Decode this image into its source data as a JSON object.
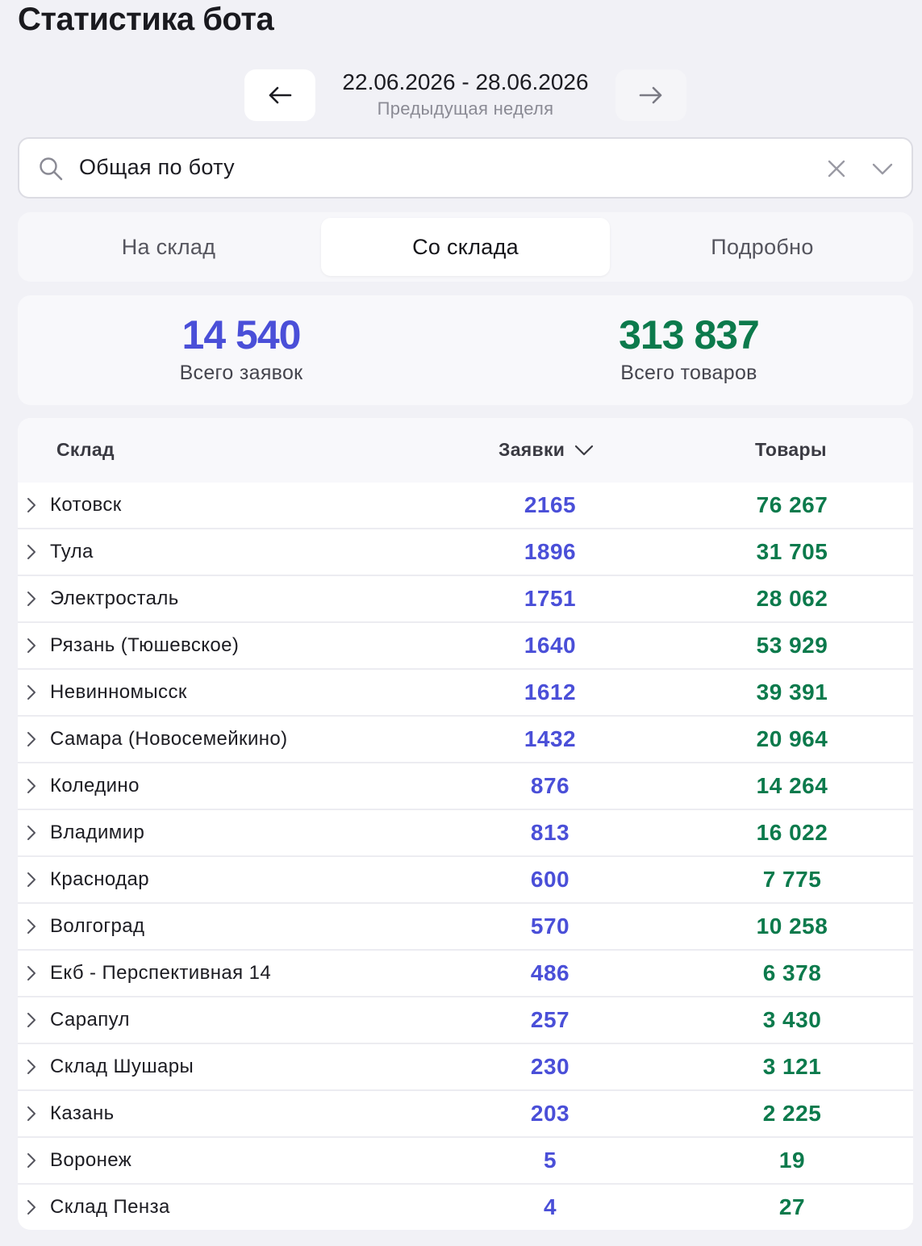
{
  "page": {
    "title": "Статистика бота"
  },
  "week_nav": {
    "range": "22.06.2026 - 28.06.2026",
    "label": "Предыдущая неделя",
    "prev_icon": "arrow-left-icon",
    "next_icon": "arrow-right-icon"
  },
  "bot_select": {
    "value": "Общая по боту",
    "search_icon": "search-icon",
    "clear_icon": "close-icon",
    "chevron_icon": "chevron-down-icon"
  },
  "tabs": [
    {
      "label": "На склад",
      "active": false
    },
    {
      "label": "Со склада",
      "active": true
    },
    {
      "label": "Подробно",
      "active": false
    }
  ],
  "summary": {
    "requests": {
      "value": "14 540",
      "label": "Всего заявок"
    },
    "goods": {
      "value": "313 837",
      "label": "Всего товаров"
    }
  },
  "colors": {
    "requests": "#4a4fd8",
    "goods": "#0c7a4c"
  },
  "table": {
    "headers": {
      "warehouse": "Склад",
      "requests": "Заявки",
      "goods": "Товары"
    },
    "rows": [
      {
        "name": "Котовск",
        "requests": "2165",
        "goods": "76 267"
      },
      {
        "name": "Тула",
        "requests": "1896",
        "goods": "31 705"
      },
      {
        "name": "Электросталь",
        "requests": "1751",
        "goods": "28 062"
      },
      {
        "name": "Рязань (Тюшевское)",
        "requests": "1640",
        "goods": "53 929"
      },
      {
        "name": "Невинномысск",
        "requests": "1612",
        "goods": "39 391"
      },
      {
        "name": "Самара (Новосемейкино)",
        "requests": "1432",
        "goods": "20 964"
      },
      {
        "name": "Коледино",
        "requests": "876",
        "goods": "14 264"
      },
      {
        "name": "Владимир",
        "requests": "813",
        "goods": "16 022"
      },
      {
        "name": "Краснодар",
        "requests": "600",
        "goods": "7 775"
      },
      {
        "name": "Волгоград",
        "requests": "570",
        "goods": "10 258"
      },
      {
        "name": "Екб - Перспективная 14",
        "requests": "486",
        "goods": "6 378"
      },
      {
        "name": "Сарапул",
        "requests": "257",
        "goods": "3 430"
      },
      {
        "name": "Склад Шушары",
        "requests": "230",
        "goods": "3 121"
      },
      {
        "name": "Казань",
        "requests": "203",
        "goods": "2 225"
      },
      {
        "name": "Воронеж",
        "requests": "5",
        "goods": "19"
      },
      {
        "name": "Склад Пенза",
        "requests": "4",
        "goods": "27"
      }
    ]
  }
}
